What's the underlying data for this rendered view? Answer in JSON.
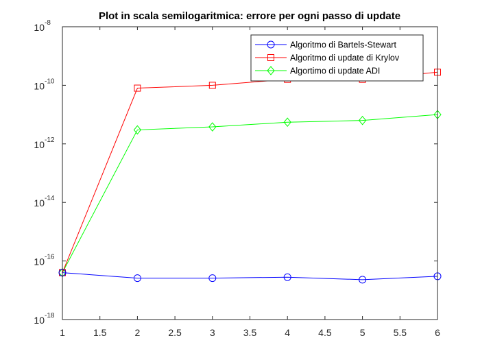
{
  "chart_data": {
    "type": "line",
    "title": "Plot in scala semilogaritmica: errore per ogni passo di update",
    "xlabel": "",
    "ylabel": "",
    "y_scale": "log",
    "xlim": [
      1,
      6
    ],
    "ylim": [
      1e-18,
      1e-08
    ],
    "grid": false,
    "legend_position": "top-right",
    "x_ticks": [
      "1",
      "1.5",
      "2",
      "2.5",
      "3",
      "3.5",
      "4",
      "4.5",
      "5",
      "5.5",
      "6"
    ],
    "y_ticks": [
      {
        "base": "10",
        "exp": "-8"
      },
      {
        "base": "10",
        "exp": "-10"
      },
      {
        "base": "10",
        "exp": "-12"
      },
      {
        "base": "10",
        "exp": "-14"
      },
      {
        "base": "10",
        "exp": "-16"
      },
      {
        "base": "10",
        "exp": "-18"
      }
    ],
    "x": [
      1,
      2,
      3,
      4,
      5,
      6
    ],
    "series": [
      {
        "name": "Algoritmo di Bartels-Stewart",
        "color": "#0000ff",
        "marker": "circle",
        "values": [
          4e-17,
          2.6e-17,
          2.6e-17,
          2.8e-17,
          2.3e-17,
          3e-17
        ]
      },
      {
        "name": "Algoritmo di update di Krylov",
        "color": "#ff0000",
        "marker": "square",
        "values": [
          4e-17,
          8e-11,
          1e-10,
          1.6e-10,
          1.6e-10,
          2.8e-10
        ]
      },
      {
        "name": "Algortimo di update ADI",
        "color": "#00ff00",
        "marker": "diamond",
        "values": [
          4e-17,
          3e-12,
          3.8e-12,
          5.5e-12,
          6.3e-12,
          1e-11
        ]
      }
    ]
  }
}
